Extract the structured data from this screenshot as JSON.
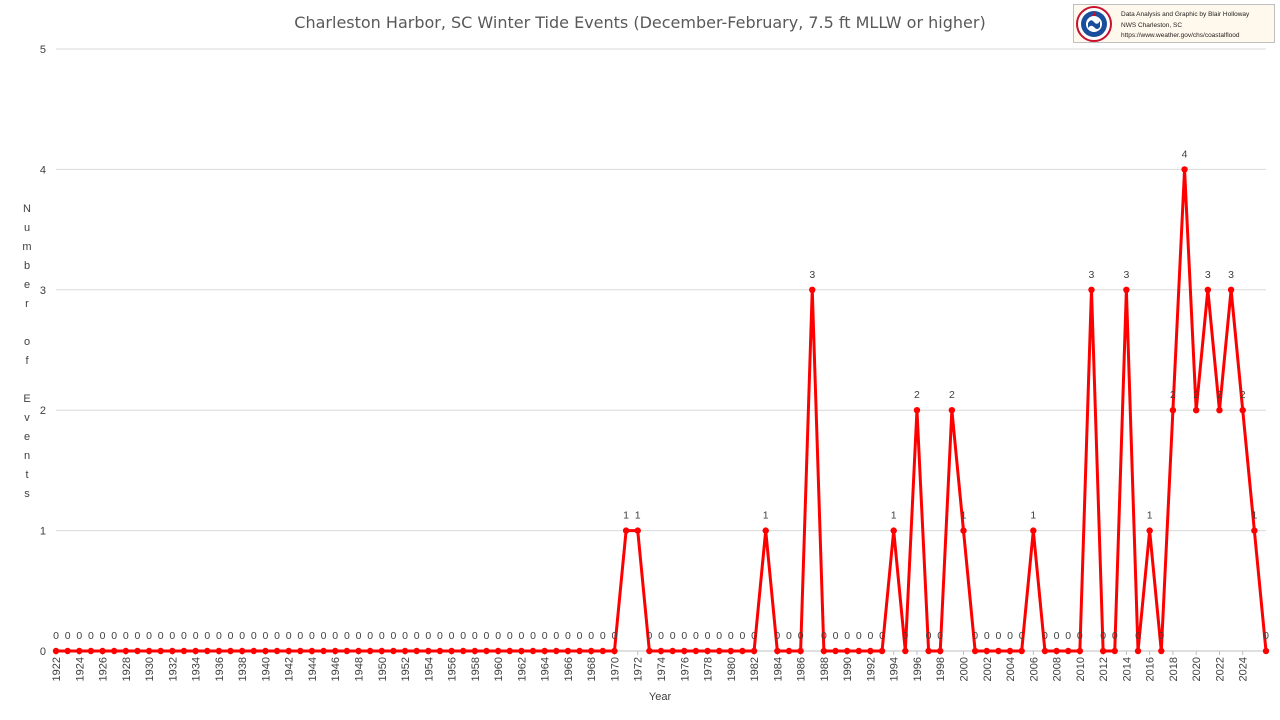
{
  "chart_data": {
    "type": "line",
    "title": "Charleston Harbor, SC Winter Tide Events (December-February, 7.5 ft MLLW or higher)",
    "xlabel": "Year",
    "ylabel": "Number of Events",
    "ylim": [
      0,
      5
    ],
    "yticks": [
      "0",
      "1",
      "2",
      "3",
      "4",
      "5"
    ],
    "x_start": 1922,
    "x_end": 2025,
    "xtick_labels": [
      "1922",
      "1924",
      "1926",
      "1928",
      "1930",
      "1932",
      "1934",
      "1936",
      "1938",
      "1940",
      "1942",
      "1944",
      "1946",
      "1948",
      "1950",
      "1952",
      "1954",
      "1956",
      "1958",
      "1960",
      "1962",
      "1964",
      "1966",
      "1968",
      "1970",
      "1972",
      "1974",
      "1976",
      "1978",
      "1980",
      "1982",
      "1984",
      "1986",
      "1988",
      "1990",
      "1992",
      "1994",
      "1996",
      "1998",
      "2000",
      "2002",
      "2004",
      "2006",
      "2008",
      "2010",
      "2012",
      "2014",
      "2016",
      "2018",
      "2020",
      "2022",
      "2024"
    ],
    "grid": true,
    "series_color": "#ff0000",
    "values": [
      0,
      0,
      0,
      0,
      0,
      0,
      0,
      0,
      0,
      0,
      0,
      0,
      0,
      0,
      0,
      0,
      0,
      0,
      0,
      0,
      0,
      0,
      0,
      0,
      0,
      0,
      0,
      0,
      0,
      0,
      0,
      0,
      0,
      0,
      0,
      0,
      0,
      0,
      0,
      0,
      0,
      0,
      0,
      0,
      0,
      0,
      0,
      0,
      0,
      1,
      1,
      0,
      0,
      0,
      0,
      0,
      0,
      0,
      0,
      0,
      0,
      1,
      0,
      0,
      0,
      3,
      0,
      0,
      0,
      0,
      0,
      0,
      1,
      0,
      2,
      0,
      0,
      2,
      1,
      0,
      0,
      0,
      0,
      0,
      1,
      0,
      0,
      0,
      0,
      3,
      0,
      0,
      3,
      0,
      1,
      0,
      2,
      4,
      2,
      3,
      2,
      3,
      2,
      1,
      0
    ]
  },
  "credit": {
    "line1": "Data Analysis and Graphic by Blair Holloway",
    "line2": "NWS Charleston, SC",
    "line3": "https://www.weather.gov/chs/coastalflood",
    "logo": "noaa-nws-logo-icon"
  }
}
